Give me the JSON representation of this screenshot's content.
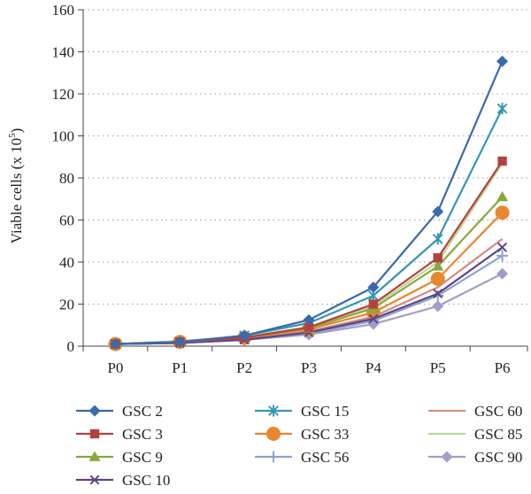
{
  "chart_data": {
    "type": "line",
    "title": "",
    "xlabel": "",
    "ylabel": "Viable cells (x 10",
    "ylabel_sup": "5",
    "ylabel_close": ")",
    "categories": [
      "P0",
      "P1",
      "P2",
      "P3",
      "P4",
      "P5",
      "P6"
    ],
    "ylim": [
      0,
      160
    ],
    "yticks": [
      0,
      20,
      40,
      60,
      80,
      100,
      120,
      140,
      160
    ],
    "grid": "horizontal dotted",
    "legend_position": "bottom",
    "series": [
      {
        "name": "GSC 2",
        "color": "#3a6aa9",
        "marker": "diamond",
        "values": [
          1,
          2,
          5,
          12.5,
          28,
          64,
          135.5
        ]
      },
      {
        "name": "GSC 3",
        "color": "#b5413e",
        "marker": "square",
        "values": [
          1,
          2,
          4,
          9,
          20,
          42,
          88
        ]
      },
      {
        "name": "GSC 9",
        "color": "#86a83d",
        "marker": "triangle",
        "values": [
          1,
          2,
          4,
          8.5,
          18,
          38,
          71
        ]
      },
      {
        "name": "GSC 10",
        "color": "#5f4585",
        "marker": "x",
        "values": [
          1,
          1.5,
          3,
          6.5,
          13,
          25,
          47
        ]
      },
      {
        "name": "GSC 15",
        "color": "#3597b5",
        "marker": "star",
        "values": [
          1,
          2,
          5,
          11,
          24,
          51,
          113
        ]
      },
      {
        "name": "GSC 33",
        "color": "#e7872f",
        "marker": "circle",
        "values": [
          1,
          2,
          4,
          8,
          16,
          32,
          63.5
        ]
      },
      {
        "name": "GSC 56",
        "color": "#8aa3d1",
        "marker": "plus",
        "values": [
          1,
          1.5,
          3,
          6,
          12,
          24,
          43
        ]
      },
      {
        "name": "GSC 60",
        "color": "#d48a85",
        "marker": "none",
        "values": [
          1,
          1.5,
          3.5,
          7,
          14,
          28,
          51
        ]
      },
      {
        "name": "GSC 85",
        "color": "#bcd89a",
        "marker": "none",
        "values": [
          1,
          2.5,
          4.5,
          9,
          19,
          40,
          87
        ]
      },
      {
        "name": "GSC 90",
        "color": "#a89bc6",
        "marker": "diamond",
        "values": [
          1,
          1.5,
          3,
          5.5,
          10.5,
          19,
          34.5
        ]
      }
    ]
  }
}
